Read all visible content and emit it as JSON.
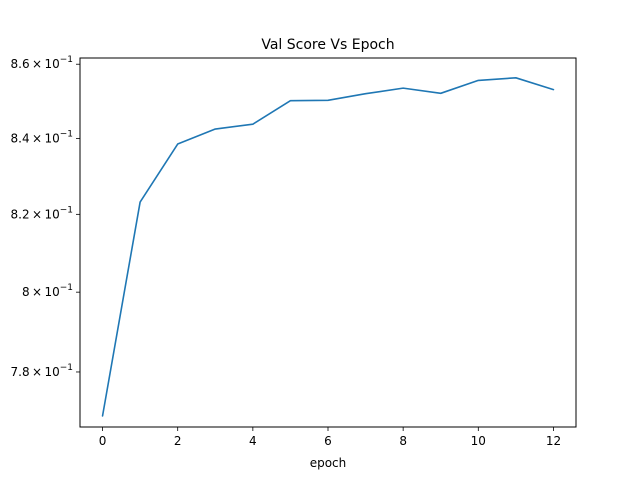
{
  "chart_data": {
    "type": "line",
    "title": "Val Score Vs Epoch",
    "xlabel": "epoch",
    "ylabel": "",
    "y_scale": "log",
    "grid": false,
    "legend": "none",
    "xlim": [
      -0.6,
      12.6
    ],
    "ylim": [
      0.7665,
      0.8617
    ],
    "x_ticks": [
      0,
      2,
      4,
      6,
      8,
      10,
      12
    ],
    "y_ticks": [
      {
        "value": 0.78,
        "mantissa": "7.8",
        "label": "7.8×10⁻¹"
      },
      {
        "value": 0.8,
        "mantissa": "8",
        "label": "8×10⁻¹"
      },
      {
        "value": 0.82,
        "mantissa": "8.2",
        "label": "8.2×10⁻¹"
      },
      {
        "value": 0.84,
        "mantissa": "8.4",
        "label": "8.4×10⁻¹"
      },
      {
        "value": 0.86,
        "mantissa": "8.6",
        "label": "8.6×10⁻¹"
      }
    ],
    "series": [
      {
        "name": "",
        "color": "#1f77b4",
        "x": [
          0,
          1,
          2,
          3,
          4,
          5,
          6,
          7,
          8,
          9,
          10,
          11,
          12
        ],
        "y": [
          0.7692,
          0.8232,
          0.8385,
          0.8425,
          0.8438,
          0.8501,
          0.8502,
          0.852,
          0.8535,
          0.8521,
          0.8556,
          0.8563,
          0.8531
        ]
      }
    ]
  }
}
